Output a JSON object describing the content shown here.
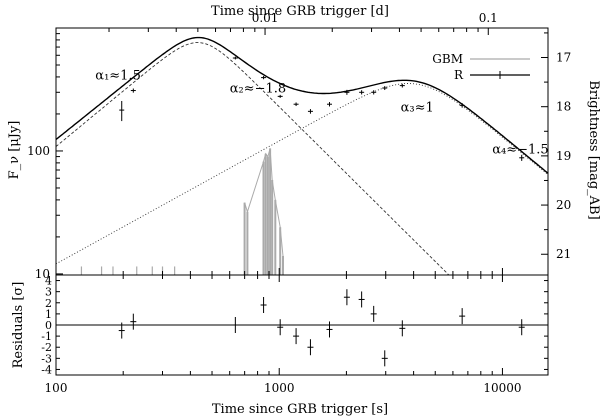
{
  "chart_data": {
    "type": "scatter",
    "top_xlabel": "Time since GRB trigger [d]",
    "top_ticks": [
      {
        "value": 0.01,
        "label": "0.01"
      },
      {
        "value": 0.1,
        "label": "0.1"
      }
    ],
    "xlabel": "Time since GRB trigger [s]",
    "xscale": "log",
    "xlim": [
      100,
      16000
    ],
    "x_ticks": [
      {
        "value": 100,
        "label": "100"
      },
      {
        "value": 1000,
        "label": "1000"
      },
      {
        "value": 10000,
        "label": "10000"
      }
    ],
    "ylabel": "F_ν [μJy]",
    "yscale": "log",
    "ylim": [
      9.8,
      1000
    ],
    "y_ticks": [
      {
        "value": 10,
        "label": "10"
      },
      {
        "value": 100,
        "label": "100"
      }
    ],
    "right_ylabel": "Brightness [mag_AB]",
    "right_ticks": [
      {
        "value": 17,
        "label": "17"
      },
      {
        "value": 18,
        "label": "18"
      },
      {
        "value": 19,
        "label": "19"
      },
      {
        "value": 20,
        "label": "20"
      },
      {
        "value": 21,
        "label": "21"
      }
    ],
    "legend": {
      "position": "top-right",
      "entries": [
        {
          "label": "GBM",
          "color": "#aaaaaa",
          "style": "line"
        },
        {
          "label": "R",
          "color": "#000000",
          "style": "line-with-errorbars"
        }
      ]
    },
    "annotations": [
      {
        "text": "α₁≈1.5",
        "x": 150,
        "y": 380
      },
      {
        "text": "α₂≈−1.8",
        "x": 600,
        "y": 300
      },
      {
        "text": "α₃≈1",
        "x": 3500,
        "y": 210
      },
      {
        "text": "α₄≈−1.5",
        "x": 9000,
        "y": 95
      }
    ],
    "series": [
      {
        "name": "R",
        "points": [
          {
            "x": 197,
            "y": 215,
            "yerr": 40
          },
          {
            "x": 222,
            "y": 310,
            "yerr": 12
          },
          {
            "x": 636,
            "y": 570,
            "yerr": 15
          },
          {
            "x": 851,
            "y": 395,
            "yerr": 12
          },
          {
            "x": 1010,
            "y": 278,
            "yerr": 8
          },
          {
            "x": 1190,
            "y": 240,
            "yerr": 8
          },
          {
            "x": 1380,
            "y": 210,
            "yerr": 9
          },
          {
            "x": 1680,
            "y": 240,
            "yerr": 10
          },
          {
            "x": 2010,
            "y": 300,
            "yerr": 14
          },
          {
            "x": 2340,
            "y": 300,
            "yerr": 12
          },
          {
            "x": 2650,
            "y": 300,
            "yerr": 12
          },
          {
            "x": 2970,
            "y": 325,
            "yerr": 12
          },
          {
            "x": 3560,
            "y": 340,
            "yerr": 12
          },
          {
            "x": 6600,
            "y": 235,
            "yerr": 10
          },
          {
            "x": 12200,
            "y": 88,
            "yerr": 5
          }
        ]
      },
      {
        "name": "",
        "style": "solid-model",
        "rise1": {
          "norm": 1000,
          "t0": 420,
          "peak": 780,
          "a_rise": 1.5,
          "a_decay": -1.8
        },
        "rise2": {
          "t_peak": 4100,
          "peak": 350,
          "a_rise": 1.0,
          "a_decay": -1.5
        }
      },
      {
        "name": "",
        "style": "dashed-component-1",
        "peak_t": 440,
        "peak_f": 760,
        "a_rise": 1.5,
        "a_decay": -1.8
      },
      {
        "name": "",
        "style": "dotted-component-2",
        "peak_t": 4100,
        "peak_f": 350,
        "a_rise": 1.0,
        "a_decay": -1.5
      }
    ],
    "gbm_bursts": [
      {
        "x": 700,
        "y": 38
      },
      {
        "x": 720,
        "y": 32
      },
      {
        "x": 850,
        "y": 82
      },
      {
        "x": 870,
        "y": 95
      },
      {
        "x": 890,
        "y": 90
      },
      {
        "x": 910,
        "y": 105
      },
      {
        "x": 930,
        "y": 58
      },
      {
        "x": 960,
        "y": 40
      },
      {
        "x": 1010,
        "y": 24
      },
      {
        "x": 1040,
        "y": 14
      }
    ],
    "residuals": {
      "ylabel": "Residuals [σ]",
      "ylim": [
        -4.5,
        4.5
      ],
      "y_ticks": [
        4,
        3,
        2,
        1,
        0,
        -1,
        -2,
        -3,
        -4
      ],
      "points": [
        {
          "x": 197,
          "y": -0.5
        },
        {
          "x": 222,
          "y": 0.3
        },
        {
          "x": 636,
          "y": 0.0
        },
        {
          "x": 851,
          "y": 1.8
        },
        {
          "x": 1010,
          "y": -0.2
        },
        {
          "x": 1190,
          "y": -1.0
        },
        {
          "x": 1380,
          "y": -2.0
        },
        {
          "x": 1680,
          "y": -0.4
        },
        {
          "x": 2010,
          "y": 2.5
        },
        {
          "x": 2340,
          "y": 2.3
        },
        {
          "x": 2650,
          "y": 1.0
        },
        {
          "x": 2970,
          "y": -3.0
        },
        {
          "x": 3560,
          "y": -0.3
        },
        {
          "x": 6600,
          "y": 0.8
        },
        {
          "x": 12200,
          "y": -0.2
        }
      ]
    }
  }
}
